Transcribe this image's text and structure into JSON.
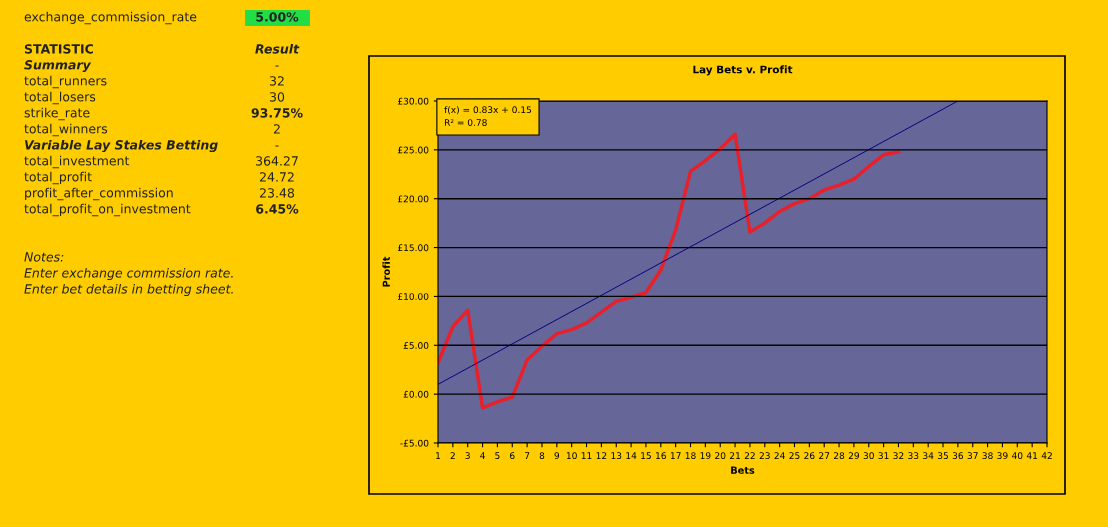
{
  "chart_data": {
    "type": "line",
    "title": "Lay Bets v. Profit",
    "xlabel": "Bets",
    "ylabel": "Profit",
    "series": [
      {
        "color": "#e8202a",
        "x": [
          1,
          2,
          3,
          4,
          5,
          6,
          7,
          8,
          9,
          10,
          11,
          12,
          13,
          14,
          15,
          16,
          17,
          18,
          19,
          20,
          21,
          22,
          23,
          24,
          25,
          26,
          27,
          28,
          29,
          30,
          31,
          32
        ],
        "values": [
          3.2,
          6.9,
          8.6,
          -1.4,
          -0.8,
          -0.3,
          3.5,
          4.9,
          6.2,
          6.6,
          7.3,
          8.4,
          9.5,
          9.9,
          10.4,
          12.7,
          16.8,
          22.8,
          23.9,
          25.1,
          26.6,
          16.6,
          17.5,
          18.7,
          19.5,
          20.0,
          20.9,
          21.4,
          22.0,
          23.3,
          24.5,
          24.8
        ]
      },
      {
        "color": "#000080",
        "x": [
          1,
          36
        ],
        "values": [
          1.0,
          30.0
        ]
      }
    ],
    "xlim": [
      1,
      42
    ],
    "xticks": [
      1,
      2,
      3,
      4,
      5,
      6,
      7,
      8,
      9,
      10,
      11,
      12,
      13,
      14,
      15,
      16,
      17,
      18,
      19,
      20,
      21,
      22,
      23,
      24,
      25,
      26,
      27,
      28,
      29,
      30,
      31,
      32,
      33,
      34,
      35,
      36,
      37,
      38,
      39,
      40,
      41,
      42
    ],
    "ylim": [
      -5,
      30
    ],
    "yticks": [
      {
        "value": -5,
        "label": "-£5.00"
      },
      {
        "value": 0,
        "label": "£0.00"
      },
      {
        "value": 5,
        "label": "£5.00"
      },
      {
        "value": 10,
        "label": "£10.00"
      },
      {
        "value": 15,
        "label": "£15.00"
      },
      {
        "value": 20,
        "label": "£20.00"
      },
      {
        "value": 25,
        "label": "£25.00"
      },
      {
        "value": 30,
        "label": "£30.00"
      }
    ],
    "grid": "y",
    "annotations": [
      "f(x) = 0.83x + 0.15",
      "R² = 0.78",
      "exchange_commission_rate",
      "5.00%",
      "STATISTIC",
      "Result",
      "Summary",
      "-",
      "total_runners",
      "32",
      "total_losers",
      "30",
      "strike_rate",
      "93.75%",
      "total_winners",
      "2",
      "Variable Lay Stakes Betting",
      "-",
      "total_investment",
      "364.27",
      "total_profit",
      "24.72",
      "profit_after_commission",
      "23.48",
      "total_profit_on_investment",
      "6.45%",
      "Notes:",
      "Enter exchange commission rate.",
      "Enter bet details in betting sheet."
    ]
  }
}
